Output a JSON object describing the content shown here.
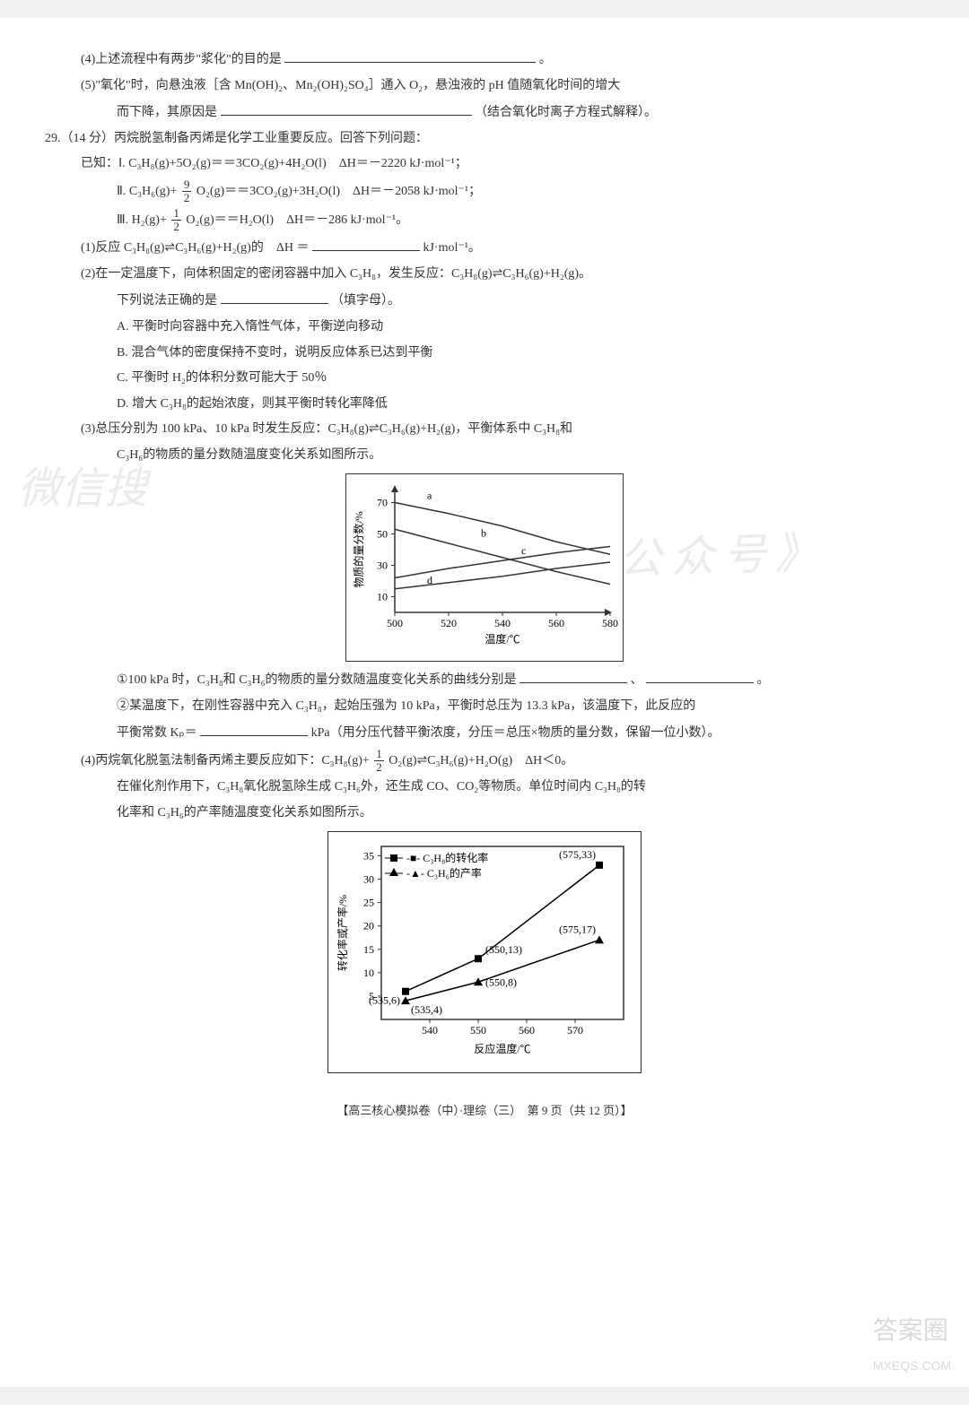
{
  "q28": {
    "p4": "(4)上述流程中有两步\"浆化\"的目的是",
    "p4_end": "。",
    "p5a": "(5)\"氧化\"时，向悬浊液［含 Mn(OH)₂、Mn₂(OH)₂SO₄］通入 O₂，悬浊液的 pH 值随氧化时间的增大",
    "p5b": "而下降，其原因是",
    "p5b_end": "（结合氧化时离子方程式解释）。"
  },
  "q29": {
    "head": "29.（14 分）丙烷脱氢制备丙烯是化学工业重要反应。回答下列问题：",
    "known": "已知：Ⅰ. C₃H₈(g)+5O₂(g)＝＝3CO₂(g)+4H₂O(l)　ΔH＝－2220 kJ·mol⁻¹；",
    "eq2_a": "Ⅱ. C₃H₆(g)+",
    "eq2_frac_n": "9",
    "eq2_frac_d": "2",
    "eq2_b": "O₂(g)＝＝3CO₂(g)+3H₂O(l)　ΔH＝－2058 kJ·mol⁻¹；",
    "eq3_a": "Ⅲ. H₂(g)+",
    "eq3_frac_n": "1",
    "eq3_frac_d": "2",
    "eq3_b": "O₂(g)＝＝H₂O(l)　ΔH＝－286 kJ·mol⁻¹。",
    "p1_a": "(1)反应 C₃H₈(g)⇌C₃H₆(g)+H₂(g)的　ΔH ＝",
    "p1_b": "kJ·mol⁻¹。",
    "p2_a": "(2)在一定温度下，向体积固定的密闭容器中加入 C₃H₈，发生反应：C₃H₈(g)⇌C₃H₆(g)+H₂(g)。",
    "p2_b": "下列说法正确的是",
    "p2_c": "（填字母）。",
    "optA": "A. 平衡时向容器中充入惰性气体，平衡逆向移动",
    "optB": "B. 混合气体的密度保持不变时，说明反应体系已达到平衡",
    "optC": "C. 平衡时 H₂的体积分数可能大于 50％",
    "optD": "D. 增大 C₃H₈的起始浓度，则其平衡时转化率降低",
    "p3_a": "(3)总压分别为 100 kPa、10 kPa 时发生反应：C₃H₈(g)⇌C₃H₆(g)+H₂(g)，平衡体系中 C₃H₈和",
    "p3_b": "C₃H₆的物质的量分数随温度变化关系如图所示。",
    "p3_1a": "①100 kPa 时，C₃H₈和 C₃H₆的物质的量分数随温度变化关系的曲线分别是",
    "p3_1b": "、",
    "p3_1c": "。",
    "p3_2a": "②某温度下，在刚性容器中充入 C₃H₈，起始压强为 10 kPa，平衡时总压为 13.3 kPa，该温度下，此反应的",
    "p3_2b": "平衡常数 Kₚ＝",
    "p3_2c": "kPa（用分压代替平衡浓度，分压＝总压×物质的量分数，保留一位小数）。",
    "p4_a": "(4)丙烷氧化脱氢法制备丙烯主要反应如下：C₃H₈(g)+",
    "p4_frac_n": "1",
    "p4_frac_d": "2",
    "p4_b": "O₂(g)⇌C₃H₆(g)+H₂O(g)　ΔH＜0。",
    "p4_c": "在催化剂作用下，C₃H₈氧化脱氢除生成 C₃H₆外，还生成 CO、CO₂等物质。单位时间内 C₃H₈的转",
    "p4_d": "化率和 C₃H₆的产率随温度变化关系如图所示。"
  },
  "chart1": {
    "ylabel": "物质的量分数/%",
    "xlabel": "温度/℃",
    "xticks": [
      "500",
      "520",
      "540",
      "560",
      "580"
    ],
    "yticks": [
      "10",
      "30",
      "50",
      "70"
    ],
    "curves": [
      "a",
      "b",
      "c",
      "d"
    ],
    "background": "#ffffff",
    "border_color": "#333333",
    "line_color": "#333333",
    "tick_color": "#333333",
    "series": {
      "a": {
        "pts": [
          [
            500,
            70
          ],
          [
            520,
            63
          ],
          [
            540,
            55
          ],
          [
            560,
            45
          ],
          [
            580,
            37
          ]
        ],
        "label_pos": [
          510,
          70
        ]
      },
      "b": {
        "pts": [
          [
            500,
            53
          ],
          [
            520,
            44
          ],
          [
            540,
            35
          ],
          [
            560,
            26
          ],
          [
            580,
            18
          ]
        ],
        "label_pos": [
          530,
          46
        ]
      },
      "c": {
        "pts": [
          [
            500,
            22
          ],
          [
            520,
            28
          ],
          [
            540,
            33
          ],
          [
            560,
            38
          ],
          [
            580,
            42
          ]
        ],
        "label_pos": [
          545,
          35
        ]
      },
      "d": {
        "pts": [
          [
            500,
            15
          ],
          [
            520,
            19
          ],
          [
            540,
            23
          ],
          [
            560,
            28
          ],
          [
            580,
            32
          ]
        ],
        "label_pos": [
          510,
          16
        ]
      }
    }
  },
  "chart2": {
    "ylabel": "转化率或产率/%",
    "xlabel": "反应温度/℃",
    "xticks": [
      "540",
      "550",
      "560",
      "570"
    ],
    "yticks": [
      "5",
      "10",
      "15",
      "20",
      "25",
      "30",
      "35"
    ],
    "legend": [
      "C₃H₈的转化率",
      "C₃H₆的产率"
    ],
    "markers": [
      "square",
      "triangle"
    ],
    "background": "#ffffff",
    "border_color": "#333333",
    "line_color": "#000000",
    "marker_color": "#000000",
    "annot_fontsize": 11,
    "series1": {
      "pts": [
        [
          535,
          6
        ],
        [
          550,
          13
        ],
        [
          575,
          33
        ]
      ],
      "labels": [
        "(535,6)",
        "(550,13)",
        "(575,33)"
      ]
    },
    "series2": {
      "pts": [
        [
          535,
          4
        ],
        [
          550,
          8
        ],
        [
          575,
          17
        ]
      ],
      "labels": [
        "(535,4)",
        "(550,8)",
        "(575,17)"
      ]
    }
  },
  "footer": "【高三核心模拟卷（中）·理综（三）　第 9 页（共 12 页）】",
  "watermarks": {
    "left": "微信搜",
    "right": "《高三答案公众号》",
    "corner1": "答案圈",
    "corner2": "MXEQS.COM"
  }
}
